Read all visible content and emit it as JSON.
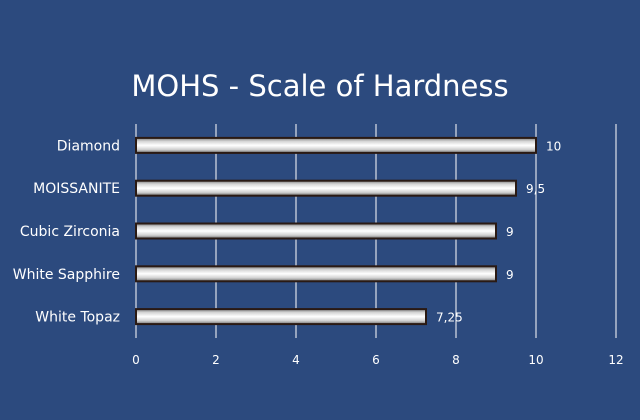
{
  "chart_data": {
    "type": "bar",
    "orientation": "horizontal",
    "title": "MOHS - Scale of Hardness",
    "xlabel": "",
    "ylabel": "",
    "categories": [
      "Diamond",
      "MOISSANITE",
      "Cubic Zirconia",
      "White Sapphire",
      "White Topaz"
    ],
    "values": [
      10,
      9.5,
      9,
      9,
      7.25
    ],
    "data_labels": [
      "10",
      "9,5",
      "9",
      "9",
      "7,25"
    ],
    "xlim": [
      0,
      12
    ],
    "xticks": [
      0,
      2,
      4,
      6,
      8,
      10,
      12
    ],
    "grid": true,
    "legend": "none",
    "colors": {
      "background": "#2c4a7e",
      "bar_light": "#ffffff",
      "bar_dark": "#8f8f8f",
      "bar_outline": "#2a1a14",
      "text": "#ffffff"
    }
  }
}
